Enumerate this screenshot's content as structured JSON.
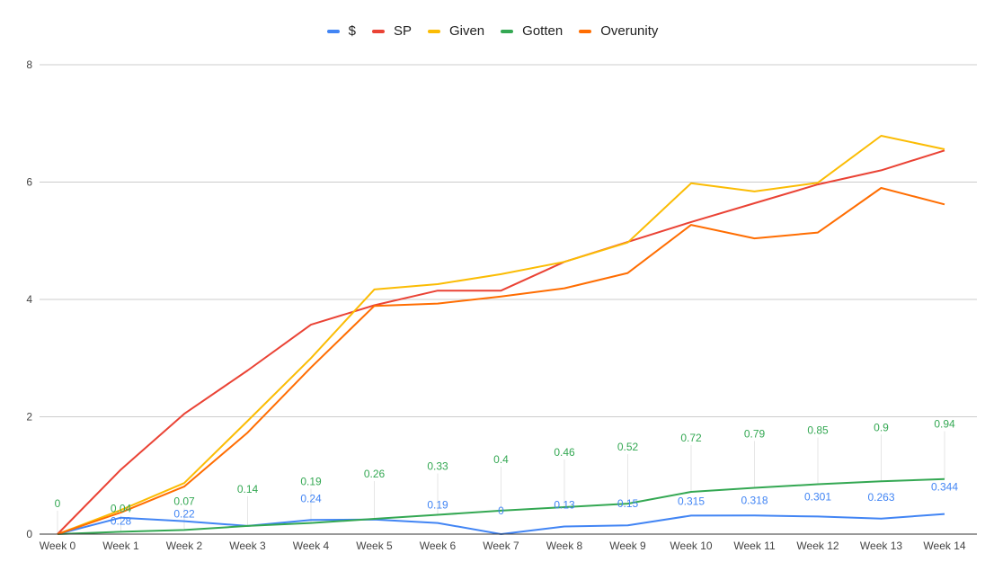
{
  "chart_data": {
    "type": "line",
    "title": "",
    "xlabel": "",
    "ylabel": "",
    "ylim": [
      0,
      8
    ],
    "yticks": [
      0,
      2,
      4,
      6,
      8
    ],
    "grid": true,
    "legend_position": "top-center",
    "categories": [
      "Week 0",
      "Week 1",
      "Week 2",
      "Week 3",
      "Week 4",
      "Week 5",
      "Week 6",
      "Week 7",
      "Week 8",
      "Week 9",
      "Week 10",
      "Week 11",
      "Week 12",
      "Week 13",
      "Week 14"
    ],
    "series": [
      {
        "name": "$",
        "color": "#4285f4",
        "values": [
          0,
          0.28,
          0.22,
          0.14,
          0.24,
          0.25,
          0.19,
          0,
          0.13,
          0.15,
          0.315,
          0.318,
          0.301,
          0.263,
          0.344
        ],
        "labels": [
          "",
          "0.28",
          "0.22",
          "",
          "0.24",
          "",
          "0.19",
          "0",
          "0.13",
          "0.15",
          "0.315",
          "0.318",
          "0.301",
          "0.263",
          "0.344"
        ]
      },
      {
        "name": "SP",
        "color": "#ea4335",
        "values": [
          0,
          1.1,
          2.05,
          2.79,
          3.57,
          3.9,
          4.15,
          4.15,
          4.64,
          4.98,
          5.32,
          5.64,
          5.96,
          6.2,
          6.54
        ],
        "labels": []
      },
      {
        "name": "Given",
        "color": "#fbbc04",
        "values": [
          0,
          0.41,
          0.87,
          1.93,
          3.0,
          4.17,
          4.26,
          4.43,
          4.64,
          4.97,
          5.98,
          5.84,
          5.99,
          6.79,
          6.56
        ],
        "labels": []
      },
      {
        "name": "Gotten",
        "color": "#34a853",
        "values": [
          0,
          0.04,
          0.07,
          0.14,
          0.19,
          0.26,
          0.33,
          0.4,
          0.46,
          0.52,
          0.72,
          0.79,
          0.85,
          0.9,
          0.94
        ],
        "labels": [
          "0",
          "0.04",
          "0.07",
          "0.14",
          "0.19",
          "0.26",
          "0.33",
          "0.4",
          "0.46",
          "0.52",
          "0.72",
          "0.79",
          "0.85",
          "0.9",
          "0.94"
        ]
      },
      {
        "name": "Overunity",
        "color": "#ff6d01",
        "values": [
          0,
          0.37,
          0.81,
          1.73,
          2.84,
          3.89,
          3.93,
          4.05,
          4.19,
          4.45,
          5.27,
          5.04,
          5.14,
          5.9,
          5.62
        ],
        "labels": []
      }
    ]
  }
}
